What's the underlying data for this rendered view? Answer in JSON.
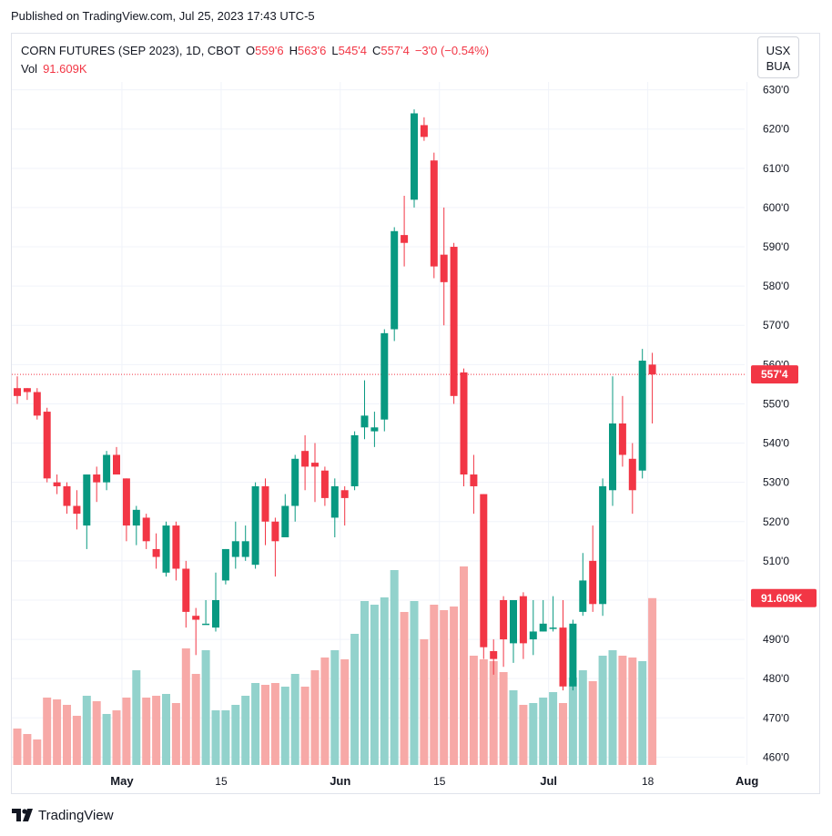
{
  "header": {
    "published": "Published on TradingView.com, Jul 25, 2023 17:43 UTC-5"
  },
  "legend": {
    "symbol": "CORN FUTURES (SEP 2023), 1D, CBOT",
    "open_label": "O",
    "open": "559'6",
    "high_label": "H",
    "high": "563'6",
    "low_label": "L",
    "low": "545'4",
    "close_label": "C",
    "close": "557'4",
    "change": "−3'0 (−0.54%)",
    "vol_label": "Vol",
    "vol": "91.609K"
  },
  "currency": {
    "line1": "USX",
    "line2": "BUA"
  },
  "footer": {
    "brand": "TradingView"
  },
  "colors": {
    "up": "#089981",
    "down": "#f23645",
    "vol_up": "#92d2cc",
    "vol_down": "#f7a9a7",
    "grid": "#f0f3fa"
  },
  "chart_data": {
    "type": "candlestick",
    "title": "CORN FUTURES (SEP 2023), 1D, CBOT",
    "ylim": [
      458,
      632
    ],
    "y_ticks": [
      460,
      470,
      480,
      490,
      500,
      510,
      520,
      530,
      540,
      550,
      560,
      570,
      580,
      590,
      600,
      610,
      620,
      630
    ],
    "y_tick_labels": [
      "460'0",
      "470'0",
      "480'0",
      "490'0",
      "500'0",
      "510'0",
      "520'0",
      "530'0",
      "540'0",
      "550'0",
      "560'0",
      "570'0",
      "580'0",
      "590'0",
      "600'0",
      "610'0",
      "620'0",
      "630'0"
    ],
    "x_ticks": [
      {
        "label": "May",
        "bold": true,
        "index": 5.5
      },
      {
        "label": "15",
        "bold": false,
        "index": 15.5
      },
      {
        "label": "Jun",
        "bold": true,
        "index": 27.5
      },
      {
        "label": "15",
        "bold": false,
        "index": 37.5
      },
      {
        "label": "Jul",
        "bold": true,
        "index": 48.5
      },
      {
        "label": "18",
        "bold": false,
        "index": 58.5
      },
      {
        "label": "Aug",
        "bold": true,
        "index": 68.5
      }
    ],
    "last_price_label": "557'4",
    "last_price": 557.5,
    "last_volume_label": "91.609K",
    "volume_max": 110000,
    "candles": [
      {
        "o": 554,
        "h": 557,
        "l": 550,
        "c": 552,
        "v": 20000
      },
      {
        "o": 554,
        "h": 554,
        "l": 551,
        "c": 553,
        "v": 17000
      },
      {
        "o": 553,
        "h": 554,
        "l": 546,
        "c": 547,
        "v": 14000
      },
      {
        "o": 548,
        "h": 549,
        "l": 530,
        "c": 531,
        "v": 37000
      },
      {
        "o": 530,
        "h": 532,
        "l": 527,
        "c": 529,
        "v": 36000
      },
      {
        "o": 529,
        "h": 530,
        "l": 522,
        "c": 524,
        "v": 33000
      },
      {
        "o": 524,
        "h": 528,
        "l": 518,
        "c": 522,
        "v": 27000
      },
      {
        "o": 519,
        "h": 532,
        "l": 513,
        "c": 532,
        "v": 38000
      },
      {
        "o": 532,
        "h": 534,
        "l": 525,
        "c": 530,
        "v": 35000
      },
      {
        "o": 530,
        "h": 538,
        "l": 528,
        "c": 537,
        "v": 28000
      },
      {
        "o": 537,
        "h": 539,
        "l": 532,
        "c": 532,
        "v": 30000
      },
      {
        "o": 531,
        "h": 531,
        "l": 515,
        "c": 519,
        "v": 37000
      },
      {
        "o": 519,
        "h": 524,
        "l": 514,
        "c": 523,
        "v": 52000
      },
      {
        "o": 521,
        "h": 522,
        "l": 513,
        "c": 515,
        "v": 37000
      },
      {
        "o": 513,
        "h": 517,
        "l": 508,
        "c": 511,
        "v": 38000
      },
      {
        "o": 507,
        "h": 520,
        "l": 506,
        "c": 519,
        "v": 39000
      },
      {
        "o": 519,
        "h": 520,
        "l": 505,
        "c": 508,
        "v": 34000
      },
      {
        "o": 508,
        "h": 510,
        "l": 493,
        "c": 497,
        "v": 64000
      },
      {
        "o": 496,
        "h": 498,
        "l": 486,
        "c": 495,
        "v": 50000
      },
      {
        "o": 494,
        "h": 500,
        "l": 494,
        "c": 494,
        "v": 63000
      },
      {
        "o": 493,
        "h": 507,
        "l": 492,
        "c": 500,
        "v": 30000
      },
      {
        "o": 505,
        "h": 513,
        "l": 504,
        "c": 513,
        "v": 30000
      },
      {
        "o": 511,
        "h": 520,
        "l": 508,
        "c": 515,
        "v": 33000
      },
      {
        "o": 511,
        "h": 519,
        "l": 510,
        "c": 515,
        "v": 38000
      },
      {
        "o": 509,
        "h": 530,
        "l": 508,
        "c": 529,
        "v": 45000
      },
      {
        "o": 529,
        "h": 531,
        "l": 514,
        "c": 520,
        "v": 44000
      },
      {
        "o": 520,
        "h": 521,
        "l": 506,
        "c": 515,
        "v": 45000
      },
      {
        "o": 516,
        "h": 527,
        "l": 516,
        "c": 524,
        "v": 43000
      },
      {
        "o": 524,
        "h": 537,
        "l": 520,
        "c": 536,
        "v": 50000
      },
      {
        "o": 538,
        "h": 542,
        "l": 528,
        "c": 534,
        "v": 43000
      },
      {
        "o": 535,
        "h": 540,
        "l": 525,
        "c": 534,
        "v": 52000
      },
      {
        "o": 533,
        "h": 534,
        "l": 524,
        "c": 526,
        "v": 59000
      },
      {
        "o": 521,
        "h": 531,
        "l": 516,
        "c": 529,
        "v": 63000
      },
      {
        "o": 528,
        "h": 529,
        "l": 519,
        "c": 526,
        "v": 58000
      },
      {
        "o": 529,
        "h": 543,
        "l": 528,
        "c": 542,
        "v": 72000
      },
      {
        "o": 544,
        "h": 556,
        "l": 541,
        "c": 547,
        "v": 90000
      },
      {
        "o": 543,
        "h": 548,
        "l": 539,
        "c": 544,
        "v": 88000
      },
      {
        "o": 546,
        "h": 569,
        "l": 543,
        "c": 568,
        "v": 92000
      },
      {
        "o": 569,
        "h": 595,
        "l": 566,
        "c": 594,
        "v": 107000
      },
      {
        "o": 593,
        "h": 603,
        "l": 585,
        "c": 591,
        "v": 84000
      },
      {
        "o": 602,
        "h": 625,
        "l": 600,
        "c": 624,
        "v": 90000
      },
      {
        "o": 621,
        "h": 623,
        "l": 617,
        "c": 618,
        "v": 69000
      },
      {
        "o": 612,
        "h": 614,
        "l": 582,
        "c": 585,
        "v": 88000
      },
      {
        "o": 588,
        "h": 600,
        "l": 570,
        "c": 581,
        "v": 85000
      },
      {
        "o": 590,
        "h": 591,
        "l": 550,
        "c": 552,
        "v": 87000
      },
      {
        "o": 558,
        "h": 559,
        "l": 529,
        "c": 532,
        "v": 109000
      },
      {
        "o": 532,
        "h": 537,
        "l": 522,
        "c": 529,
        "v": 60000
      },
      {
        "o": 527,
        "h": 527,
        "l": 485,
        "c": 488,
        "v": 58000
      },
      {
        "o": 487,
        "h": 490,
        "l": 481,
        "c": 485,
        "v": 57000
      },
      {
        "o": 500,
        "h": 501,
        "l": 483,
        "c": 490,
        "v": 51000
      },
      {
        "o": 489,
        "h": 500,
        "l": 484,
        "c": 500,
        "v": 41000
      },
      {
        "o": 501,
        "h": 502,
        "l": 485,
        "c": 489,
        "v": 33000
      },
      {
        "o": 490,
        "h": 500,
        "l": 486,
        "c": 492,
        "v": 34000
      },
      {
        "o": 492,
        "h": 500,
        "l": 492,
        "c": 494,
        "v": 37000
      },
      {
        "o": 493,
        "h": 501,
        "l": 492,
        "c": 493,
        "v": 40000
      },
      {
        "o": 493,
        "h": 500,
        "l": 477,
        "c": 478,
        "v": 34000
      },
      {
        "o": 478,
        "h": 495,
        "l": 477,
        "c": 494,
        "v": 48000
      },
      {
        "o": 497,
        "h": 512,
        "l": 496,
        "c": 505,
        "v": 52000
      },
      {
        "o": 510,
        "h": 519,
        "l": 497,
        "c": 499,
        "v": 46000
      },
      {
        "o": 499,
        "h": 531,
        "l": 496,
        "c": 529,
        "v": 60000
      },
      {
        "o": 528,
        "h": 557,
        "l": 524,
        "c": 545,
        "v": 63000
      },
      {
        "o": 545,
        "h": 552,
        "l": 534,
        "c": 537,
        "v": 60000
      },
      {
        "o": 536,
        "h": 540,
        "l": 522,
        "c": 528,
        "v": 59000
      },
      {
        "o": 533,
        "h": 564,
        "l": 531,
        "c": 561,
        "v": 57000
      },
      {
        "o": 560,
        "h": 563,
        "l": 545,
        "c": 557.5,
        "v": 91609
      }
    ]
  }
}
